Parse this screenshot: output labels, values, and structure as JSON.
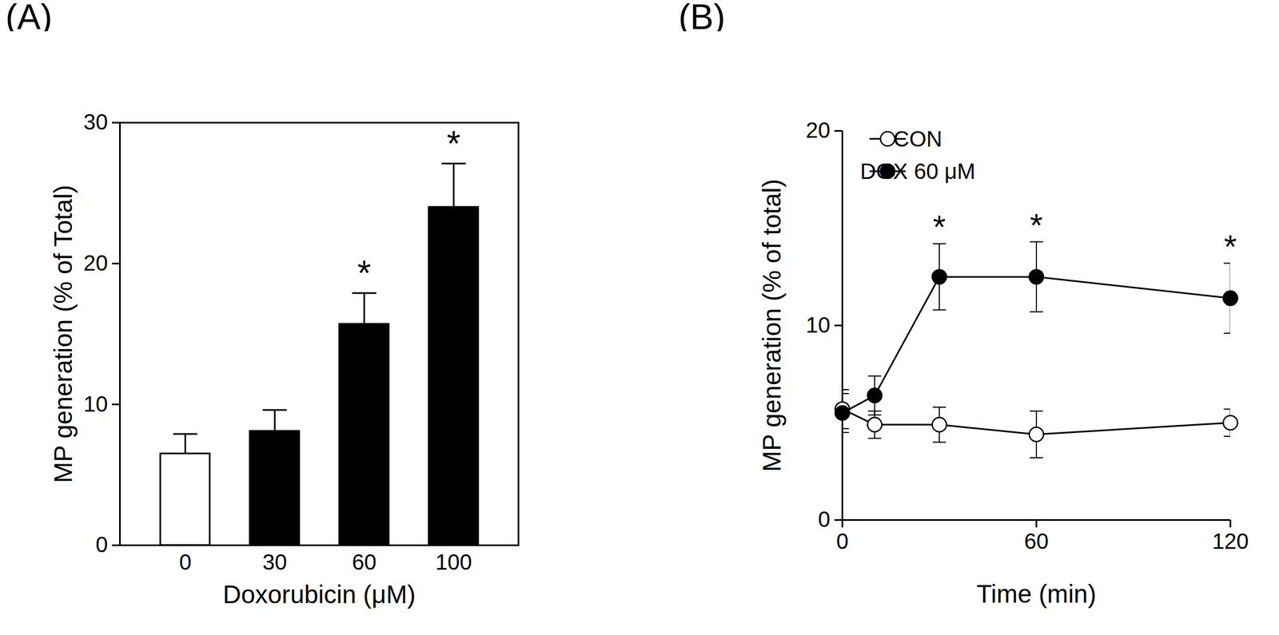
{
  "chart_data": [
    {
      "type": "bar",
      "title": "(A)",
      "x_label": "Doxorubicin (μM)",
      "y_label": "MP generation (% of Total)",
      "categories": [
        "0",
        "30",
        "60",
        "100"
      ],
      "values": [
        6.5,
        8.1,
        15.7,
        24.0
      ],
      "errors": [
        1.4,
        1.5,
        2.2,
        3.1
      ],
      "colors": [
        "#ffffff",
        "#000000",
        "#000000",
        "#000000"
      ],
      "ylim": [
        0,
        30
      ],
      "yticks": [
        0,
        10,
        20,
        30
      ],
      "annotations": [
        {
          "x": "60",
          "text": "*"
        },
        {
          "x": "100",
          "text": "*"
        }
      ]
    },
    {
      "type": "line",
      "title": "(B)",
      "x_label": "Time (min)",
      "y_label": "MP generation (% of total)",
      "x": [
        0,
        10,
        30,
        60,
        120
      ],
      "xlim": [
        0,
        120
      ],
      "xticks": [
        0,
        60,
        120
      ],
      "ylim": [
        0,
        20
      ],
      "yticks": [
        0,
        10,
        20
      ],
      "legend": "top-left",
      "series": [
        {
          "name": "CON",
          "color": "#000000",
          "marker": "circle-open",
          "values": [
            5.7,
            4.9,
            4.9,
            4.4,
            5.0
          ],
          "errors": [
            1.0,
            0.7,
            0.9,
            1.2,
            0.7
          ]
        },
        {
          "name": "DOX 60 μM",
          "color": "#000000",
          "marker": "circle",
          "values": [
            5.5,
            6.4,
            12.5,
            12.5,
            11.4
          ],
          "errors": [
            1.0,
            1.0,
            1.7,
            1.8,
            1.8
          ]
        }
      ],
      "annotations": [
        {
          "x": 30,
          "text": "*"
        },
        {
          "x": 60,
          "text": "*"
        },
        {
          "x": 120,
          "text": "*"
        }
      ]
    }
  ]
}
